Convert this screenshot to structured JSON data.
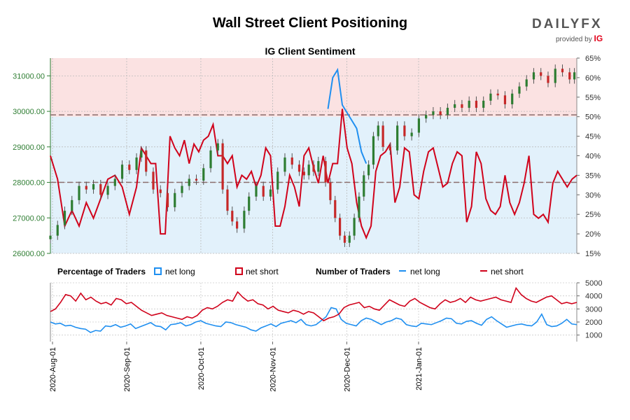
{
  "header": {
    "title": "Wall Street Client Positioning",
    "subtitle": "IG Client Sentiment",
    "logo_text": "DAILYFX",
    "logo_provider": "provided by",
    "logo_brand": "IG"
  },
  "colors": {
    "net_long": "#1f8ff0",
    "net_short": "#d0021b",
    "candle_up": "#2e7d32",
    "candle_down": "#c62828",
    "bg_short": "#fbe2e2",
    "bg_long": "#e2f1fb"
  },
  "legend": {
    "pct_title": "Percentage of Traders",
    "pct_long": "net long",
    "pct_short": "net short",
    "num_title": "Number of Traders",
    "num_long": "net long",
    "num_short": "net short"
  },
  "chart_data": [
    {
      "type": "candlestick",
      "title": "IG Client Sentiment",
      "price_axis": {
        "ylim": [
          26000,
          31500
        ],
        "ticks": [
          "26000.00",
          "27000.00",
          "28000.00",
          "29000.00",
          "30000.00",
          "31000.00"
        ]
      },
      "pct_axis": {
        "ylim": [
          15,
          65
        ],
        "ticks": [
          "15%",
          "20%",
          "25%",
          "30%",
          "35%",
          "40%",
          "45%",
          "50%",
          "55%",
          "60%",
          "65%"
        ]
      },
      "x_labels": [
        "2020-Aug-01",
        "2020-Sep-01",
        "2020-Oct-01",
        "2020-Nov-01",
        "2020-Dec-01",
        "2021-Jan-01"
      ],
      "reference_levels": [
        29900,
        28000
      ],
      "candles": [
        {
          "d": 0,
          "o": 26400,
          "c": 26500
        },
        {
          "d": 3,
          "o": 26500,
          "c": 26800
        },
        {
          "d": 6,
          "o": 26800,
          "c": 27200
        },
        {
          "d": 9,
          "o": 27200,
          "c": 27500
        },
        {
          "d": 12,
          "o": 27500,
          "c": 27900
        },
        {
          "d": 15,
          "o": 27900,
          "c": 27800
        },
        {
          "d": 18,
          "o": 27800,
          "c": 27950
        },
        {
          "d": 21,
          "o": 27950,
          "c": 27650
        },
        {
          "d": 24,
          "o": 27650,
          "c": 27900
        },
        {
          "d": 27,
          "o": 27900,
          "c": 28100
        },
        {
          "d": 30,
          "o": 28100,
          "c": 28500
        },
        {
          "d": 33,
          "o": 28500,
          "c": 28350
        },
        {
          "d": 36,
          "o": 28350,
          "c": 28700
        },
        {
          "d": 38,
          "o": 28700,
          "c": 28900
        },
        {
          "d": 40,
          "o": 28900,
          "c": 28300
        },
        {
          "d": 43,
          "o": 28300,
          "c": 27800
        },
        {
          "d": 46,
          "o": 27800,
          "c": 27700
        },
        {
          "d": 49,
          "o": 27700,
          "c": 27300
        },
        {
          "d": 52,
          "o": 27300,
          "c": 27700
        },
        {
          "d": 55,
          "o": 27700,
          "c": 27900
        },
        {
          "d": 58,
          "o": 27900,
          "c": 28100
        },
        {
          "d": 61,
          "o": 28100,
          "c": 28050
        },
        {
          "d": 64,
          "o": 28050,
          "c": 28400
        },
        {
          "d": 67,
          "o": 28400,
          "c": 28900
        },
        {
          "d": 70,
          "o": 28900,
          "c": 29100
        },
        {
          "d": 72,
          "o": 29100,
          "c": 27800
        },
        {
          "d": 74,
          "o": 27800,
          "c": 27200
        },
        {
          "d": 76,
          "o": 27200,
          "c": 26900
        },
        {
          "d": 78,
          "o": 26900,
          "c": 26700
        },
        {
          "d": 81,
          "o": 26700,
          "c": 27200
        },
        {
          "d": 83,
          "o": 27200,
          "c": 27600
        },
        {
          "d": 86,
          "o": 27600,
          "c": 27900
        },
        {
          "d": 89,
          "o": 27900,
          "c": 27600
        },
        {
          "d": 92,
          "o": 27600,
          "c": 27800
        },
        {
          "d": 95,
          "o": 27800,
          "c": 28300
        },
        {
          "d": 98,
          "o": 28300,
          "c": 28700
        },
        {
          "d": 101,
          "o": 28700,
          "c": 28500
        },
        {
          "d": 104,
          "o": 28500,
          "c": 28300
        },
        {
          "d": 106,
          "o": 28300,
          "c": 28200
        },
        {
          "d": 108,
          "o": 28200,
          "c": 28500
        },
        {
          "d": 110,
          "o": 28500,
          "c": 28300
        },
        {
          "d": 112,
          "o": 28300,
          "c": 28600
        },
        {
          "d": 115,
          "o": 28600,
          "c": 28000
        },
        {
          "d": 117,
          "o": 28000,
          "c": 27500
        },
        {
          "d": 119,
          "o": 27500,
          "c": 27000
        },
        {
          "d": 121,
          "o": 27000,
          "c": 26500
        },
        {
          "d": 123,
          "o": 26500,
          "c": 26300
        },
        {
          "d": 125,
          "o": 26300,
          "c": 26500
        },
        {
          "d": 127,
          "o": 26500,
          "c": 27000
        },
        {
          "d": 129,
          "o": 27000,
          "c": 27600
        },
        {
          "d": 131,
          "o": 27600,
          "c": 28200
        },
        {
          "d": 133,
          "o": 28200,
          "c": 28500
        },
        {
          "d": 135,
          "o": 28500,
          "c": 29300
        },
        {
          "d": 137,
          "o": 29300,
          "c": 29600
        },
        {
          "d": 139,
          "o": 29600,
          "c": 29000
        },
        {
          "d": 142,
          "o": 29000,
          "c": 28900
        },
        {
          "d": 145,
          "o": 28900,
          "c": 29600
        },
        {
          "d": 148,
          "o": 29600,
          "c": 29300
        },
        {
          "d": 151,
          "o": 29300,
          "c": 29400
        },
        {
          "d": 154,
          "o": 29400,
          "c": 29800
        },
        {
          "d": 157,
          "o": 29800,
          "c": 29900
        },
        {
          "d": 160,
          "o": 29900,
          "c": 30000
        },
        {
          "d": 163,
          "o": 30000,
          "c": 29900
        },
        {
          "d": 166,
          "o": 29900,
          "c": 30100
        },
        {
          "d": 169,
          "o": 30100,
          "c": 30200
        },
        {
          "d": 172,
          "o": 30200,
          "c": 30100
        },
        {
          "d": 175,
          "o": 30100,
          "c": 30300
        },
        {
          "d": 178,
          "o": 30300,
          "c": 30100
        },
        {
          "d": 181,
          "o": 30100,
          "c": 30300
        },
        {
          "d": 184,
          "o": 30300,
          "c": 30500
        },
        {
          "d": 187,
          "o": 30500,
          "c": 30450
        },
        {
          "d": 190,
          "o": 30450,
          "c": 30200
        },
        {
          "d": 193,
          "o": 30200,
          "c": 30500
        },
        {
          "d": 196,
          "o": 30500,
          "c": 30700
        },
        {
          "d": 199,
          "o": 30700,
          "c": 30900
        },
        {
          "d": 202,
          "o": 30900,
          "c": 31100
        },
        {
          "d": 205,
          "o": 31100,
          "c": 31000
        },
        {
          "d": 208,
          "o": 31000,
          "c": 30800
        },
        {
          "d": 211,
          "o": 30800,
          "c": 31200
        },
        {
          "d": 214,
          "o": 31200,
          "c": 31100
        },
        {
          "d": 217,
          "o": 31100,
          "c": 30900
        },
        {
          "d": 219,
          "o": 30900,
          "c": 31100
        }
      ],
      "series": [
        {
          "name": "net short",
          "days": [
            0,
            3,
            6,
            9,
            12,
            15,
            18,
            21,
            24,
            27,
            30,
            33,
            36,
            38,
            40,
            42,
            44,
            46,
            48,
            50,
            52,
            54,
            56,
            58,
            60,
            62,
            64,
            66,
            68,
            70,
            72,
            74,
            76,
            78,
            80,
            82,
            84,
            86,
            88,
            90,
            92,
            94,
            96,
            98,
            100,
            102,
            104,
            106,
            108,
            110,
            112,
            114,
            116,
            118,
            120,
            122,
            124,
            126,
            128,
            130,
            132,
            134,
            136,
            138,
            140,
            142,
            144,
            146,
            148,
            150,
            152,
            154,
            156,
            158,
            160,
            162,
            164,
            166,
            168,
            170,
            172,
            174,
            176,
            178,
            180,
            182,
            184,
            186,
            188,
            190,
            192,
            194,
            196,
            198,
            200,
            202,
            204,
            206,
            208,
            210,
            212,
            214,
            216,
            218,
            220
          ],
          "values": [
            40,
            34,
            22,
            26,
            22,
            28,
            24,
            29,
            34,
            35,
            32,
            25,
            32,
            42,
            40,
            38,
            38,
            20,
            20,
            45,
            42,
            40,
            44,
            38,
            43,
            41,
            44,
            45,
            48,
            40,
            40,
            38,
            40,
            32,
            35,
            34,
            36,
            32,
            35,
            42,
            40,
            22,
            22,
            27,
            35,
            32,
            27,
            40,
            42,
            37,
            33,
            40,
            33,
            38,
            38,
            52,
            42,
            38,
            28,
            22,
            19,
            22,
            36,
            40,
            41,
            43,
            28,
            32,
            42,
            41,
            30,
            29,
            36,
            41,
            42,
            37,
            32,
            33,
            38,
            41,
            40,
            23,
            27,
            41,
            38,
            29,
            26,
            25,
            27,
            35,
            28,
            25,
            28,
            33,
            40,
            25,
            24,
            25,
            23,
            33,
            36,
            34,
            32,
            34,
            35
          ],
          "note": "percent of traders"
        },
        {
          "name": "net long",
          "days": [
            116,
            118,
            120,
            122,
            124,
            126,
            128,
            130,
            132
          ],
          "values": [
            52,
            60,
            62,
            53,
            51,
            49,
            47,
            41,
            38
          ],
          "note": "percent of traders (plotted segments where net long dominates)"
        }
      ]
    },
    {
      "type": "line",
      "title": "Number of Traders",
      "ylim": [
        500,
        5000
      ],
      "y_ticks": [
        "1000",
        "2000",
        "3000",
        "4000",
        "5000"
      ],
      "series": [
        {
          "name": "net long",
          "values": [
            2000,
            1850,
            1900,
            1700,
            1750,
            1600,
            1500,
            1450,
            1200,
            1350,
            1300,
            1700,
            1650,
            1800,
            1600,
            1700,
            1850,
            1500,
            1650,
            1800,
            1950,
            1700,
            1650,
            1400,
            1800,
            1850,
            1950,
            1700,
            1800,
            2000,
            2100,
            1900,
            1800,
            1700,
            1650,
            2000,
            1950,
            1800,
            1700,
            1600,
            1400,
            1300,
            1550,
            1700,
            1850,
            1650,
            1900,
            2000,
            2100,
            1950,
            2200,
            1800,
            1700,
            1800,
            2100,
            2400,
            3100,
            3000,
            2200,
            1900,
            1800,
            1700,
            2100,
            2300,
            2200,
            2000,
            1800,
            2000,
            2100,
            2300,
            2200,
            1800,
            1700,
            1650,
            1900,
            1850,
            1800,
            1950,
            2100,
            2300,
            2250,
            1900,
            1850,
            2050,
            2100,
            1900,
            1750,
            2200,
            2400,
            2100,
            1850,
            1600,
            1700,
            1800,
            1850,
            1750,
            1700,
            2000,
            2600,
            1800,
            1650,
            1700,
            1900,
            2200,
            1850,
            1800
          ],
          "note": "count"
        },
        {
          "name": "net short",
          "values": [
            2800,
            3000,
            3500,
            4100,
            4000,
            3600,
            4200,
            3700,
            3900,
            3600,
            3400,
            3500,
            3300,
            3800,
            3700,
            3400,
            3500,
            3200,
            2900,
            2700,
            2500,
            2600,
            2700,
            2500,
            2400,
            2300,
            2200,
            2400,
            2300,
            2500,
            2900,
            3100,
            3000,
            3200,
            3500,
            3700,
            3600,
            4300,
            3900,
            3600,
            3700,
            3400,
            3300,
            3000,
            3200,
            2900,
            2800,
            2700,
            2900,
            2800,
            2600,
            2800,
            2700,
            2400,
            2100,
            2300,
            2400,
            2600,
            3100,
            3300,
            3400,
            3500,
            3100,
            3200,
            3000,
            2900,
            3300,
            3700,
            3500,
            3300,
            3200,
            3600,
            3800,
            3500,
            3300,
            3100,
            3000,
            3400,
            3700,
            3500,
            3600,
            3800,
            3500,
            3900,
            3700,
            3600,
            3700,
            3800,
            3900,
            3700,
            3600,
            3500,
            4600,
            4100,
            3800,
            3600,
            3500,
            3700,
            3900,
            4000,
            3700,
            3400,
            3500,
            3400,
            3500
          ],
          "note": "count"
        }
      ]
    }
  ]
}
